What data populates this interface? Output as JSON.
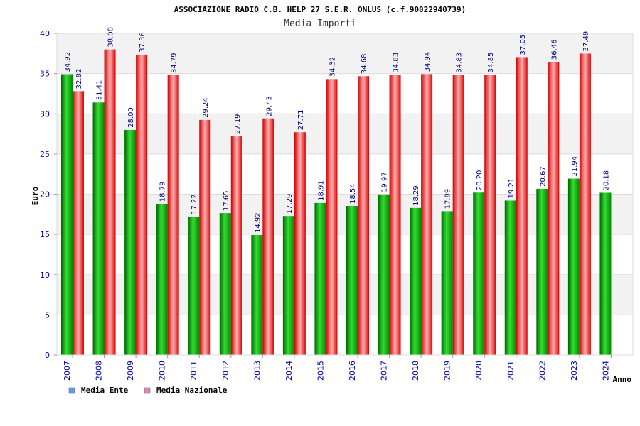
{
  "chart_data": {
    "type": "bar",
    "title": "ASSOCIAZIONE RADIO C.B. HELP 27 S.E.R. ONLUS (c.f.90022940739)",
    "subtitle": "Media Importi",
    "xlabel": "Anno",
    "ylabel": "Euro",
    "ylim": [
      0,
      40
    ],
    "yticks": [
      "0",
      "5",
      "10",
      "15",
      "20",
      "25",
      "30",
      "35",
      "40"
    ],
    "grid": true,
    "legend_position": "bottom-left",
    "categories": [
      "2007",
      "2008",
      "2009",
      "2010",
      "2011",
      "2012",
      "2013",
      "2014",
      "2015",
      "2016",
      "2017",
      "2018",
      "2019",
      "2020",
      "2021",
      "2022",
      "2023",
      "2024"
    ],
    "series": [
      {
        "name": "Media Ente",
        "color": "#00a000",
        "legend_color": "#6699ee",
        "values": [
          34.92,
          31.41,
          28.0,
          18.79,
          17.22,
          17.65,
          14.92,
          17.29,
          18.91,
          18.54,
          19.97,
          18.29,
          17.89,
          20.2,
          19.21,
          20.67,
          21.94,
          20.18
        ],
        "labels": [
          "34.92",
          "31.41",
          "28.00",
          "18.79",
          "17.22",
          "17.65",
          "14.92",
          "17.29",
          "18.91",
          "18.54",
          "19.97",
          "18.29",
          "17.89",
          "20.20",
          "19.21",
          "20.67",
          "21.94",
          "20.18"
        ]
      },
      {
        "name": "Media Nazionale",
        "color": "#e02020",
        "legend_color": "#dd88bb",
        "values": [
          32.82,
          38.0,
          37.36,
          34.79,
          29.24,
          27.19,
          29.43,
          27.71,
          34.32,
          34.68,
          34.83,
          34.94,
          34.83,
          34.85,
          37.05,
          36.46,
          37.49,
          null
        ],
        "labels": [
          "32.82",
          "38.00",
          "37.36",
          "34.79",
          "29.24",
          "27.19",
          "29.43",
          "27.71",
          "34.32",
          "34.68",
          "34.83",
          "34.94",
          "34.83",
          "34.85",
          "37.05",
          "36.46",
          "37.49",
          null
        ]
      }
    ]
  }
}
